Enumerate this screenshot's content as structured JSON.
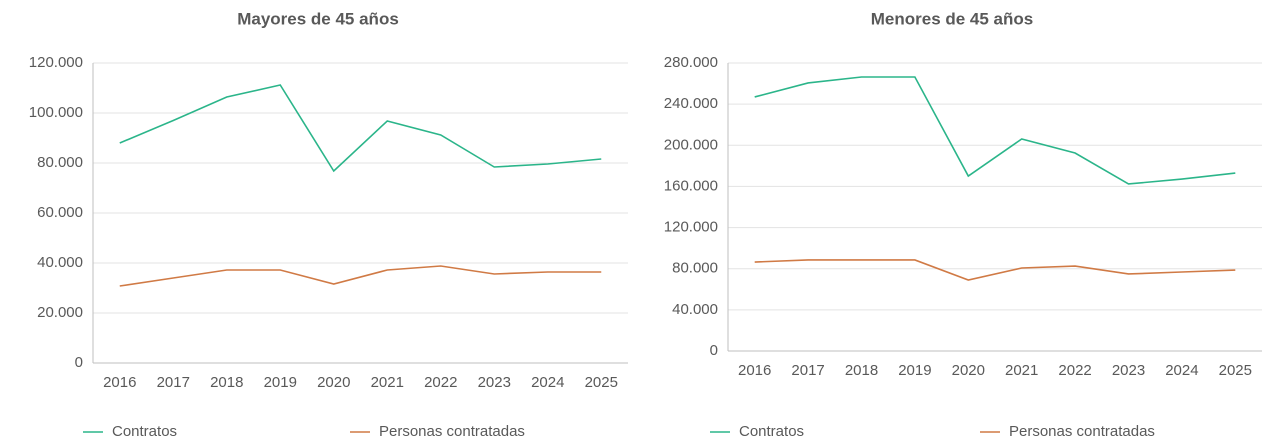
{
  "chart_data": [
    {
      "type": "line",
      "title": "Mayores de 45 años",
      "categories": [
        "2016",
        "2017",
        "2018",
        "2019",
        "2020",
        "2021",
        "2022",
        "2023",
        "2024",
        "2025"
      ],
      "series": [
        {
          "name": "Contratos",
          "color": "#2bb58a",
          "values": [
            88000,
            97000,
            106400,
            111200,
            76800,
            96800,
            91200,
            78400,
            79600,
            81600
          ]
        },
        {
          "name": "Personas contratadas",
          "color": "#d07a45",
          "values": [
            30800,
            34000,
            37200,
            37200,
            31600,
            37200,
            38800,
            35600,
            36400,
            36400
          ]
        }
      ],
      "ylim": [
        0,
        120000
      ],
      "yticks": [
        0,
        {
          "value": 20000,
          "label": "20.000"
        },
        {
          "value": 40000,
          "label": "40.000"
        },
        {
          "value": 60000,
          "label": "60.000"
        },
        {
          "value": 80000,
          "label": "80.000"
        },
        {
          "value": 100000,
          "label": "100.000"
        },
        {
          "value": 120000,
          "label": "120.000"
        }
      ],
      "grid": true,
      "legend": "bottom"
    },
    {
      "type": "line",
      "title": "Menores de 45 años",
      "categories": [
        "2016",
        "2017",
        "2018",
        "2019",
        "2020",
        "2021",
        "2022",
        "2023",
        "2024",
        "2025"
      ],
      "series": [
        {
          "name": "Contratos",
          "color": "#2bb58a",
          "values": [
            247000,
            260600,
            266400,
            266400,
            170100,
            206100,
            192500,
            162400,
            167200,
            173000
          ]
        },
        {
          "name": "Personas contratadas",
          "color": "#d07a45",
          "values": [
            86500,
            88500,
            88500,
            88500,
            69000,
            80700,
            82600,
            74900,
            76800,
            78700
          ]
        }
      ],
      "ylim": [
        0,
        280000
      ],
      "yticks": [
        0,
        {
          "value": 40000,
          "label": "40.000"
        },
        {
          "value": 80000,
          "label": "80.000"
        },
        {
          "value": 120000,
          "label": "120.000"
        },
        {
          "value": 160000,
          "label": "160.000"
        },
        {
          "value": 200000,
          "label": "200.000"
        },
        {
          "value": 240000,
          "label": "240.000"
        },
        {
          "value": 280000,
          "label": "280.000"
        }
      ],
      "grid": true,
      "legend": "bottom"
    }
  ]
}
